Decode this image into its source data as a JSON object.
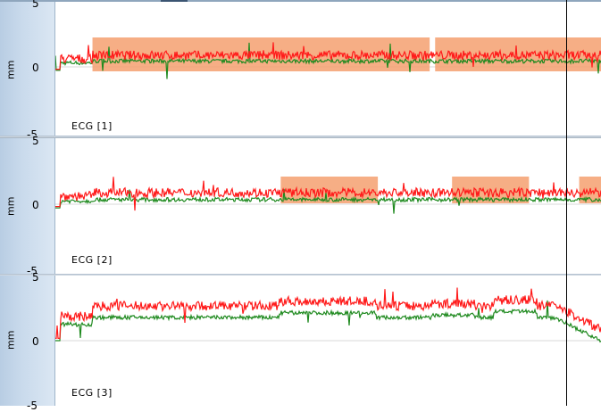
{
  "panels": [
    {
      "label": "ECG [1]",
      "unit": "mm",
      "y_max_label": "5",
      "y_zero_label": "0",
      "y_min_label": "-5",
      "highlights_frac": [
        [
          0.068,
          0.686
        ],
        [
          0.696,
          1.0
        ]
      ]
    },
    {
      "label": "ECG [2]",
      "unit": "mm",
      "y_max_label": "5",
      "y_zero_label": "0",
      "y_min_label": "-5",
      "highlights_frac": [
        [
          0.413,
          0.591
        ],
        [
          0.727,
          0.868
        ],
        [
          0.96,
          1.0
        ]
      ]
    },
    {
      "label": "ECG [3]",
      "unit": "mm",
      "y_max_label": "5",
      "y_zero_label": "0",
      "y_min_label": "-5",
      "highlights_frac": []
    }
  ],
  "colors": {
    "red_trace": "#ff1a1a",
    "green_trace": "#1f8a1f",
    "highlight": "#f4a070",
    "axis_band": "#c9daec"
  }
}
